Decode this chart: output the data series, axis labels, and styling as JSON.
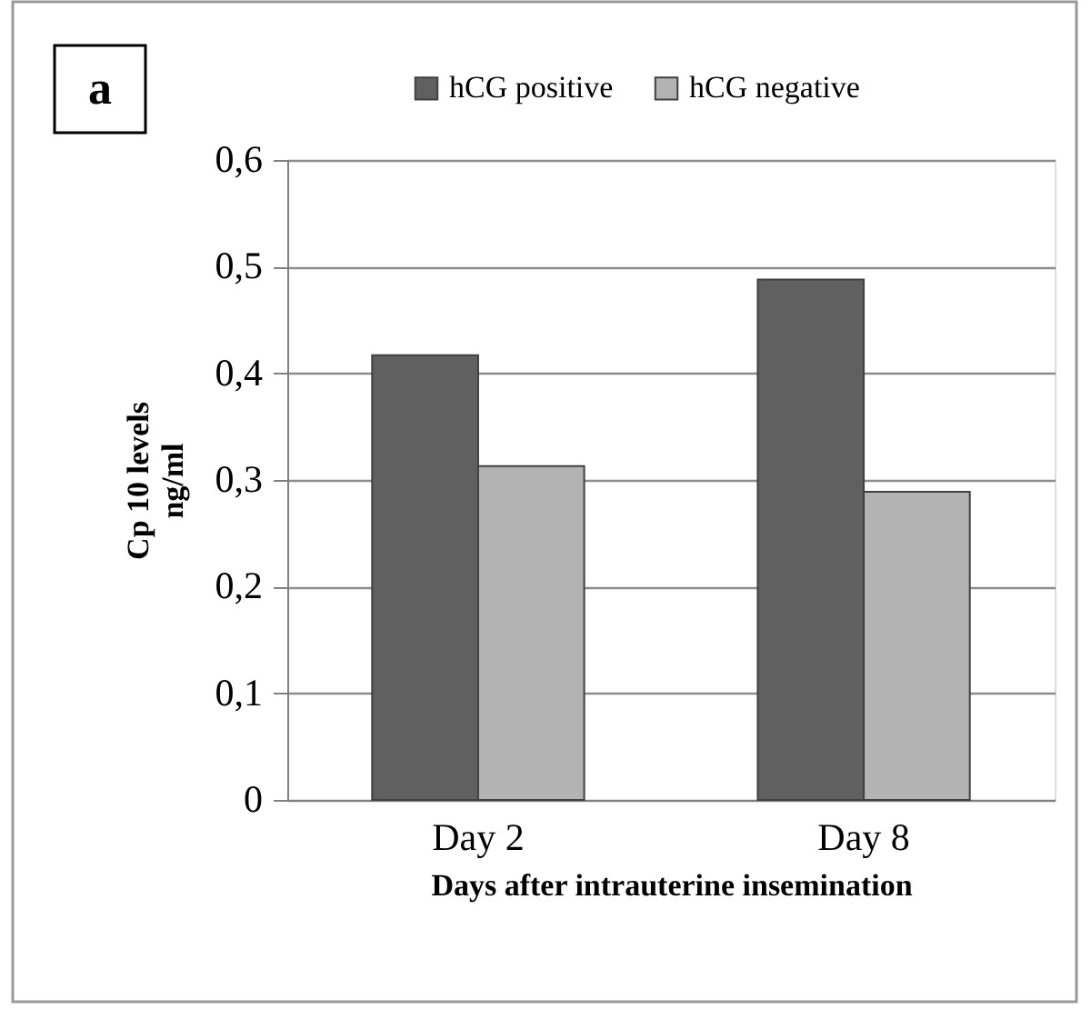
{
  "chart_data": {
    "type": "bar",
    "categories": [
      "Day 2",
      "Day 8"
    ],
    "series": [
      {
        "name": "hCG positive",
        "color": "#606060",
        "values": [
          0.417,
          0.488
        ]
      },
      {
        "name": "hCG negative",
        "color": "#b3b3b3",
        "values": [
          0.313,
          0.289
        ]
      }
    ],
    "xlabel": "Days after intrauterine insemination",
    "ylabel": "Cp 10 levels\nng/ml",
    "annotations": [
      "a"
    ],
    "ylim": [
      0,
      0.6
    ],
    "yticks": [
      0,
      {
        "value": 0.1,
        "label": "0,1"
      },
      {
        "value": 0.2,
        "label": "0,2"
      },
      {
        "value": 0.3,
        "label": "0,3"
      },
      {
        "value": 0.4,
        "label": "0,4"
      },
      {
        "value": 0.5,
        "label": "0,5"
      },
      {
        "value": 0.6,
        "label": "0,6"
      }
    ],
    "grid": "y",
    "legend": "top"
  }
}
